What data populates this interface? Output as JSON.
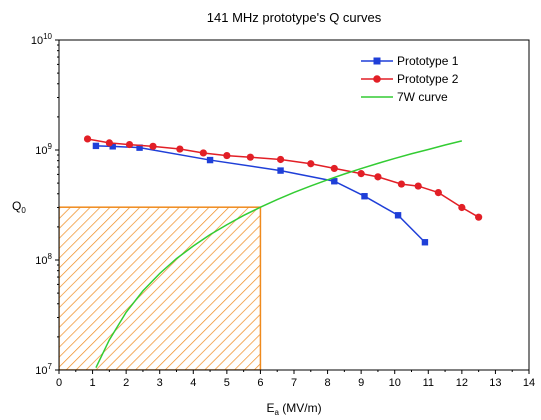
{
  "chart_data": {
    "type": "line",
    "title": "141 MHz prototype's Q curves",
    "xlabel_main": "E",
    "xlabel_sub": "a",
    "xlabel_unit": " (MV/m)",
    "ylabel_main": "Q",
    "ylabel_sub": "0",
    "xlim": [
      0,
      14
    ],
    "ylim": [
      10000000,
      10000000000
    ],
    "yscale": "log",
    "x_ticks": [
      "0",
      "1",
      "2",
      "3",
      "4",
      "5",
      "6",
      "7",
      "8",
      "9",
      "10",
      "11",
      "12",
      "13",
      "14"
    ],
    "y_ticks": [
      {
        "value": 10000000,
        "base": "10",
        "exp": "7"
      },
      {
        "value": 100000000,
        "base": "10",
        "exp": "8"
      },
      {
        "value": 1000000000,
        "base": "10",
        "exp": "9"
      },
      {
        "value": 10000000000,
        "base": "10",
        "exp": "10"
      }
    ],
    "legend_position": "top-right",
    "series": [
      {
        "name": "Prototype 1",
        "color": "#1f3fd8",
        "marker": "square",
        "x": [
          1.1,
          1.6,
          2.4,
          4.5,
          6.6,
          8.2,
          9.1,
          10.1,
          10.9
        ],
        "y": [
          1090000000,
          1080000000,
          1050000000,
          810000000,
          650000000,
          520000000,
          380000000,
          255000000,
          145000000
        ]
      },
      {
        "name": "Prototype 2",
        "color": "#e21f26",
        "marker": "circle",
        "x": [
          0.85,
          1.5,
          2.1,
          2.8,
          3.6,
          4.3,
          5.0,
          5.7,
          6.6,
          7.5,
          8.2,
          9.0,
          9.5,
          10.2,
          10.7,
          11.3,
          12.0,
          12.5
        ],
        "y": [
          1260000000,
          1160000000,
          1120000000,
          1080000000,
          1020000000,
          940000000,
          890000000,
          860000000,
          820000000,
          750000000,
          680000000,
          610000000,
          570000000,
          490000000,
          470000000,
          410000000,
          300000000,
          245000000
        ]
      },
      {
        "name": "7W curve",
        "color": "#33cc33",
        "marker": "none",
        "x": [
          1.1,
          1.5,
          2,
          2.5,
          3,
          3.5,
          4,
          4.5,
          5,
          5.5,
          6,
          6.5,
          7,
          7.5,
          8,
          8.5,
          9,
          9.5,
          10,
          10.5,
          11,
          11.5,
          12
        ],
        "y": [
          10500000,
          18800000,
          33500000,
          52400000,
          75400000,
          103000000,
          134000000,
          170000000,
          209000000,
          254000000,
          302000000,
          354000000,
          411000000,
          471000000,
          536000000,
          605000000,
          678000000,
          756000000,
          838000000,
          924000000,
          1010000000,
          1110000000,
          1210000000
        ]
      }
    ],
    "hatched_region": {
      "x": [
        0,
        6
      ],
      "y": [
        10000000,
        302000000
      ],
      "color": "#ef8a1d"
    }
  }
}
